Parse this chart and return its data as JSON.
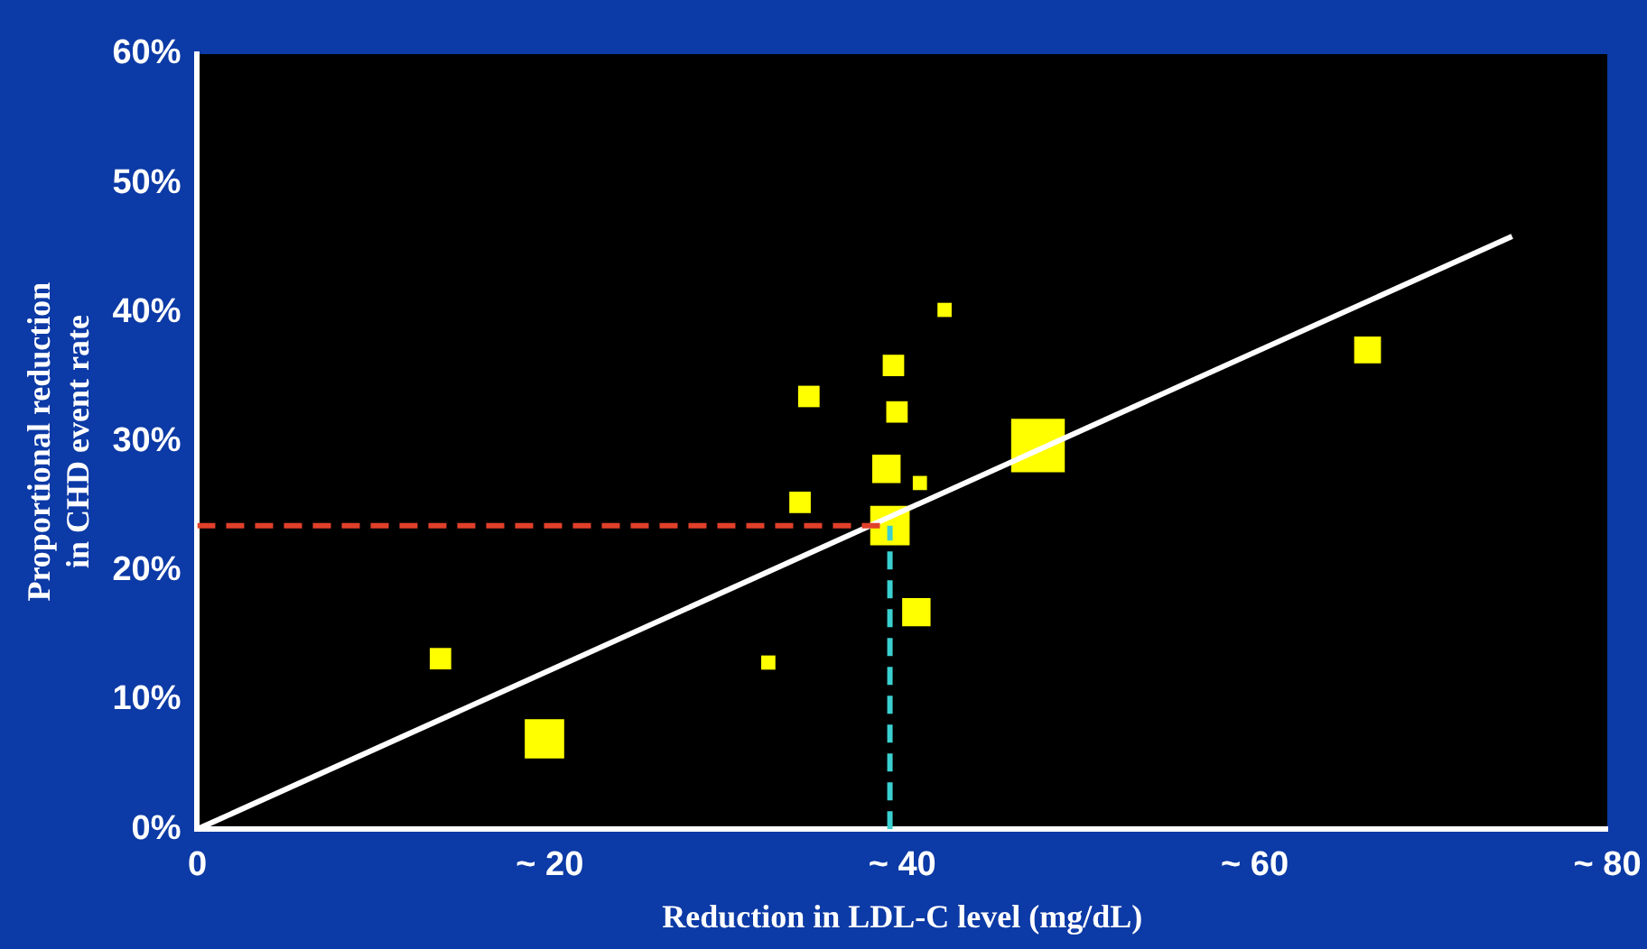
{
  "chart_data": {
    "type": "bubble",
    "xlabel": "Reduction in LDL-C level (mg/dL)",
    "ylabel": "Proportional reduction\nin CHD event rate",
    "xlim": [
      0,
      80
    ],
    "xticks": [
      0,
      {
        "value": 20,
        "label": "~ 20"
      },
      {
        "value": 40,
        "label": "~ 40"
      },
      {
        "value": 60,
        "label": "~ 60"
      },
      {
        "value": 80,
        "label": "~ 80"
      }
    ],
    "ylim": [
      0,
      60
    ],
    "yticks": [
      {
        "value": 0,
        "label": "0%"
      },
      {
        "value": 10,
        "label": "10%"
      },
      {
        "value": 20,
        "label": "20%"
      },
      {
        "value": 30,
        "label": "30%"
      },
      {
        "value": 40,
        "label": "40%"
      },
      {
        "value": 50,
        "label": "50%"
      },
      {
        "value": 60,
        "label": "60%"
      }
    ],
    "legend": false,
    "marker": "square",
    "series": [
      {
        "color": "#ffff00",
        "x": [
          42.4,
          39.5,
          34.7,
          39.7,
          47.7,
          39.1,
          41.0,
          34.2,
          39.3,
          40.8,
          13.8,
          32.4,
          19.7,
          66.4
        ],
        "values": [
          40.2,
          35.9,
          33.5,
          32.3,
          29.7,
          27.9,
          26.8,
          25.3,
          23.5,
          16.8,
          13.2,
          12.9,
          7.0,
          37.1
        ],
        "sizes": [
          0.07,
          0.16,
          0.16,
          0.16,
          1,
          0.28,
          0.07,
          0.16,
          0.54,
          0.28,
          0.16,
          0.07,
          0.54,
          0.25
        ]
      },
      {
        "type": "line",
        "marker": "none",
        "color": "#ffffff",
        "x": [
          0,
          74.6
        ],
        "values": [
          0,
          45.9
        ]
      },
      {
        "type": "line",
        "marker": "none",
        "line_style": "dashed",
        "color": "#e0402a",
        "x": [
          0,
          39.3
        ],
        "values": [
          23.5,
          23.5
        ]
      },
      {
        "type": "line",
        "marker": "none",
        "line_style": "dashed",
        "color": "#3ad0d0",
        "x": [
          39.3,
          39.3
        ],
        "values": [
          0,
          23.5
        ]
      }
    ]
  }
}
